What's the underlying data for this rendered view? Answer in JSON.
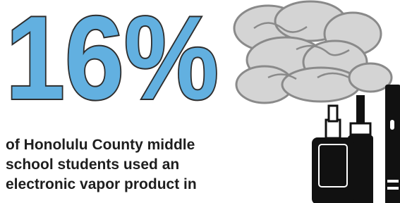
{
  "headline": {
    "stat": "16%"
  },
  "body": {
    "lines": [
      "of Honolulu County middle",
      "school students used an",
      "electronic vapor product in"
    ]
  }
}
